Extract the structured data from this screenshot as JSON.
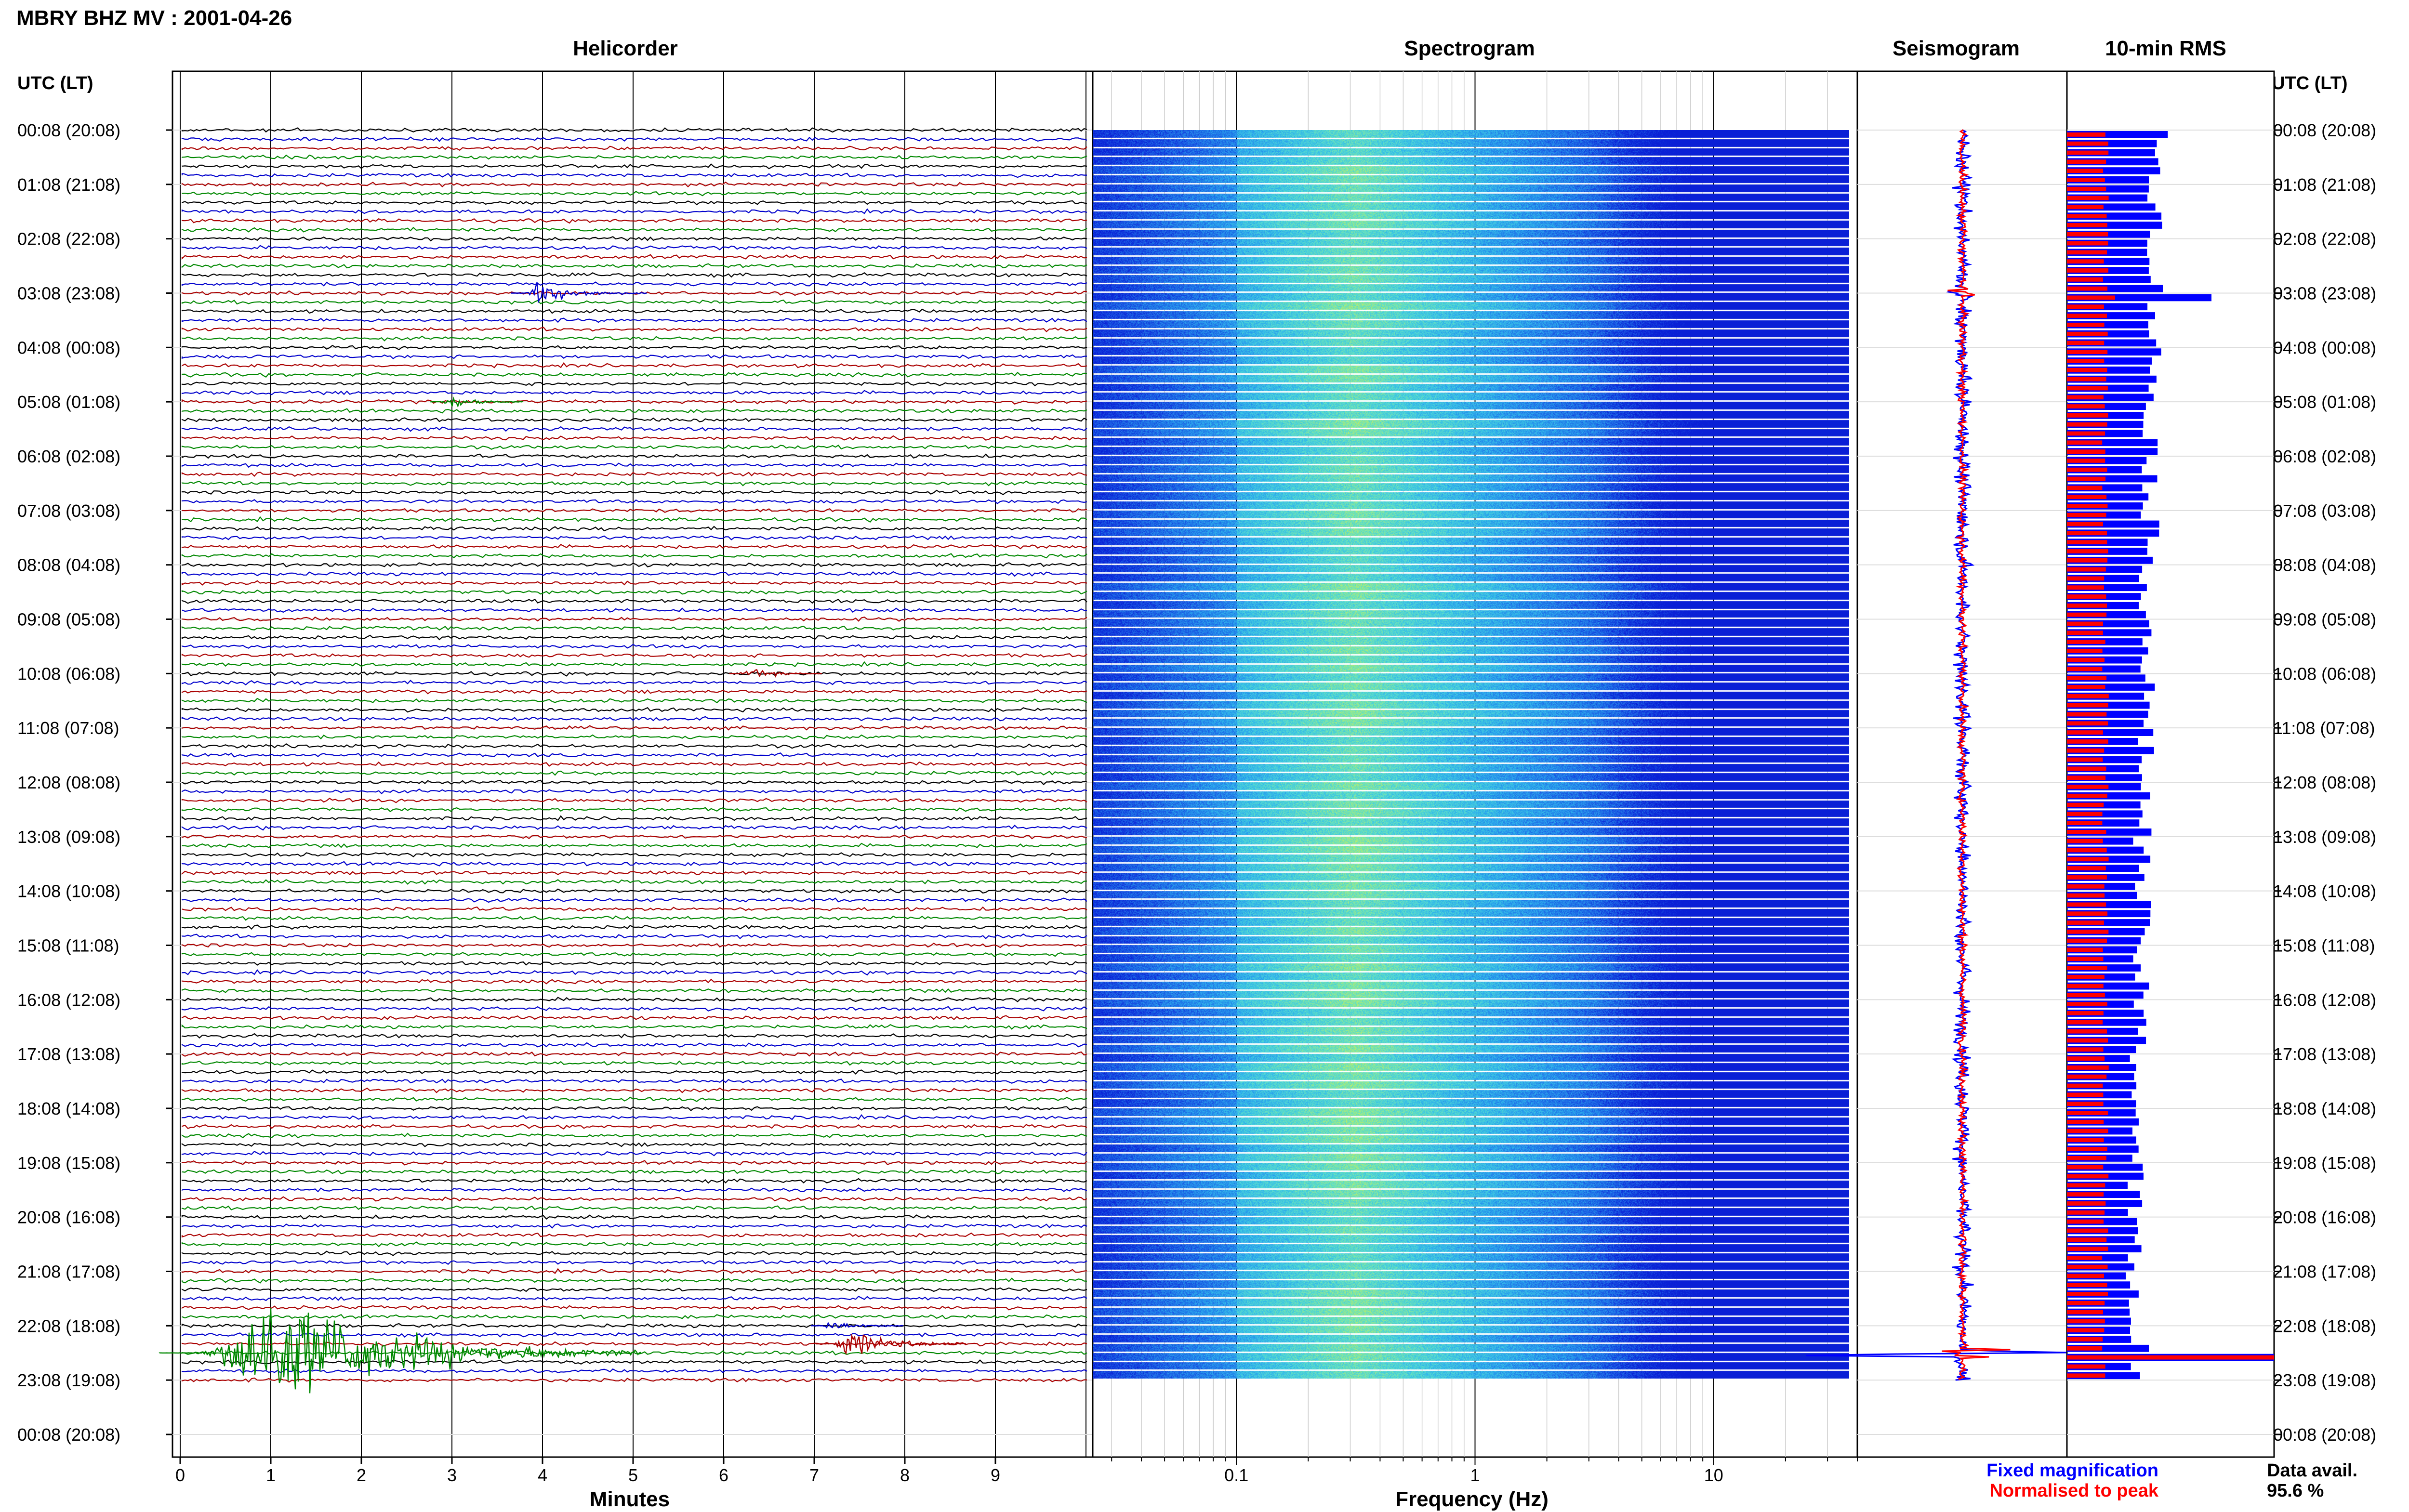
{
  "chart_data": {
    "type": "heatmap",
    "title": "MBRY BHZ MV : 2001-04-26",
    "panels": {
      "helicorder": "Helicorder",
      "spectrogram": "Spectrogram",
      "seismogram": "Seismogram",
      "rms": "10-min RMS"
    },
    "time_axis_label": "UTC (LT)",
    "time_ticks": [
      "00:08 (20:08)",
      "01:08 (21:08)",
      "02:08 (22:08)",
      "03:08 (23:08)",
      "04:08 (00:08)",
      "05:08 (01:08)",
      "06:08 (02:08)",
      "07:08 (03:08)",
      "08:08 (04:08)",
      "09:08 (05:08)",
      "10:08 (06:08)",
      "11:08 (07:08)",
      "12:08 (08:08)",
      "13:08 (09:08)",
      "14:08 (10:08)",
      "15:08 (11:08)",
      "16:08 (12:08)",
      "17:08 (13:08)",
      "18:08 (14:08)",
      "19:08 (15:08)",
      "20:08 (16:08)",
      "21:08 (17:08)",
      "22:08 (18:08)",
      "23:08 (19:08)",
      "00:08 (20:08)"
    ],
    "helicorder_xlabel": "Minutes",
    "helicorder_xticks": [
      "0",
      "1",
      "2",
      "3",
      "4",
      "5",
      "6",
      "7",
      "8",
      "9"
    ],
    "helicorder_xlim": [
      0,
      10
    ],
    "helicorder_trace_colors": [
      "#000000",
      "#0000cc",
      "#aa0000",
      "#008800"
    ],
    "helicorder_events": [
      {
        "time": "03:08",
        "minute": 4.0,
        "color": "#0000cc",
        "amplitude": 0.6
      },
      {
        "time": "05:08",
        "minute": 3.0,
        "color": "#008800",
        "amplitude": 0.3
      },
      {
        "time": "10:08",
        "minute": 6.3,
        "color": "#aa0000",
        "amplitude": 0.3
      },
      {
        "time": "22:08",
        "minute": 7.2,
        "color": "#0000cc",
        "amplitude": 0.3
      },
      {
        "time": "22:28",
        "minute": 7.4,
        "color": "#aa0000",
        "amplitude": 0.7
      },
      {
        "time": "22:38",
        "minute": 1.0,
        "color": "#008800",
        "amplitude": 3.0
      }
    ],
    "spectrogram_xlabel": "Frequency (Hz)",
    "spectrogram_xticks": [
      "0.1",
      "1",
      "10"
    ],
    "spectrogram_xlim": [
      0.025,
      40
    ],
    "spectrogram_xscale": "log",
    "spectrogram_colormap": [
      "#0a1fd6",
      "#1f6fe8",
      "#2fb8ee",
      "#5fe2c8",
      "#c8ef5a",
      "#eef23a"
    ],
    "spectrogram_peak_band_hz": [
      0.2,
      0.5
    ],
    "rms_series": [
      {
        "name": "Fixed magnification",
        "color": "#0000ff"
      },
      {
        "name": "Normalised to peak",
        "color": "#ff0000"
      }
    ],
    "data_availability": {
      "label": "Data avail.",
      "value": "95.6 %"
    }
  }
}
